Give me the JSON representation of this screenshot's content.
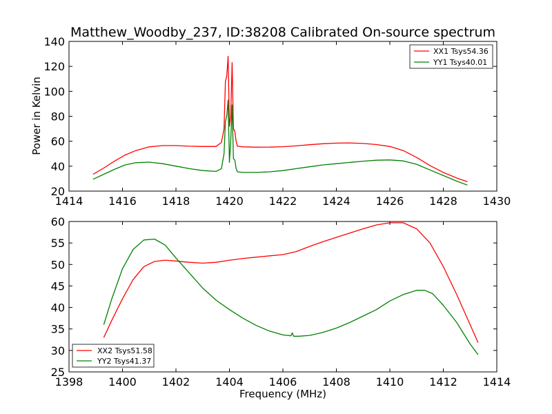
{
  "chart_data": [
    {
      "type": "line",
      "title": "Matthew_Woodby_237, ID:38208 Calibrated On-source spectrum",
      "xlabel": "",
      "ylabel": "Power in Kelvin",
      "xlim": [
        1414,
        1430
      ],
      "ylim": [
        20,
        140
      ],
      "xticks": [
        1414,
        1416,
        1418,
        1420,
        1422,
        1424,
        1426,
        1428,
        1430
      ],
      "yticks": [
        20,
        40,
        60,
        80,
        100,
        120,
        140
      ],
      "xtick_labels": [
        "1414",
        "1416",
        "1418",
        "1420",
        "1422",
        "1424",
        "1426",
        "1428",
        "1430"
      ],
      "ytick_labels": [
        "20",
        "40",
        "60",
        "80",
        "100",
        "120",
        "140"
      ],
      "legend_position": "top-right",
      "series": [
        {
          "name": "XX1 Tsys54.36",
          "color": "#ff0000",
          "x": [
            1414.9,
            1415.3,
            1415.7,
            1416.1,
            1416.5,
            1417.0,
            1417.5,
            1418.0,
            1418.5,
            1419.0,
            1419.5,
            1419.7,
            1419.8,
            1419.85,
            1419.9,
            1419.95,
            1420.0,
            1420.05,
            1420.1,
            1420.15,
            1420.2,
            1420.25,
            1420.3,
            1420.5,
            1421.0,
            1421.5,
            1422.0,
            1422.5,
            1423.0,
            1423.5,
            1424.0,
            1424.5,
            1425.0,
            1425.5,
            1426.0,
            1426.5,
            1427.0,
            1427.5,
            1428.0,
            1428.5,
            1428.9
          ],
          "y": [
            33.5,
            38.5,
            44,
            49,
            52.5,
            55.5,
            56.5,
            56.5,
            56.0,
            55.8,
            55.8,
            59,
            70,
            108,
            112,
            128,
            72,
            80,
            123,
            70,
            68,
            60,
            56,
            55.5,
            55.2,
            55.3,
            55.6,
            56.3,
            57.2,
            58.0,
            58.5,
            58.6,
            58.2,
            57.3,
            55.8,
            52.5,
            47,
            40.5,
            35,
            30.5,
            27.5
          ]
        },
        {
          "name": "YY1 Tsys40.01",
          "color": "#008000",
          "x": [
            1414.9,
            1415.3,
            1415.7,
            1416.1,
            1416.5,
            1417.0,
            1417.5,
            1418.0,
            1418.5,
            1419.0,
            1419.5,
            1419.7,
            1419.8,
            1419.85,
            1419.9,
            1419.95,
            1420.0,
            1420.05,
            1420.1,
            1420.15,
            1420.2,
            1420.25,
            1420.3,
            1420.5,
            1421.0,
            1421.5,
            1422.0,
            1422.5,
            1423.0,
            1423.5,
            1424.0,
            1424.5,
            1425.0,
            1425.5,
            1426.0,
            1426.5,
            1427.0,
            1427.5,
            1428.0,
            1428.5,
            1428.9
          ],
          "y": [
            29.5,
            33.5,
            37.5,
            41,
            42.8,
            43.2,
            42.0,
            40.0,
            38.0,
            36.5,
            35.8,
            38,
            50,
            76,
            80,
            93,
            43,
            60,
            89,
            46,
            45,
            38,
            35.5,
            35.0,
            35.0,
            35.5,
            36.5,
            38.0,
            39.5,
            41.0,
            42.0,
            43.0,
            44.0,
            44.8,
            45.0,
            44.2,
            41.5,
            37.0,
            32.5,
            28.0,
            24.8
          ]
        }
      ]
    },
    {
      "type": "line",
      "title": "",
      "xlabel": "Frequency (MHz)",
      "ylabel": "",
      "xlim": [
        1398,
        1414
      ],
      "ylim": [
        25,
        60
      ],
      "xticks": [
        1398,
        1400,
        1402,
        1404,
        1406,
        1408,
        1410,
        1412,
        1414
      ],
      "yticks": [
        25,
        30,
        35,
        40,
        45,
        50,
        55,
        60
      ],
      "xtick_labels": [
        "1398",
        "1400",
        "1402",
        "1404",
        "1406",
        "1408",
        "1410",
        "1412",
        "1414"
      ],
      "ytick_labels": [
        "25",
        "30",
        "35",
        "40",
        "45",
        "50",
        "55",
        "60"
      ],
      "legend_position": "bottom-left",
      "series": [
        {
          "name": "XX2 Tsys51.58",
          "color": "#ff0000",
          "x": [
            1399.3,
            1399.6,
            1400.0,
            1400.4,
            1400.8,
            1401.2,
            1401.6,
            1402.0,
            1402.5,
            1403.0,
            1403.5,
            1404.0,
            1404.5,
            1405.0,
            1405.5,
            1406.0,
            1406.5,
            1407.0,
            1407.5,
            1408.0,
            1408.5,
            1409.0,
            1409.5,
            1410.0,
            1410.5,
            1411.0,
            1411.5,
            1412.0,
            1412.5,
            1413.0,
            1413.3
          ],
          "y": [
            33.0,
            37.0,
            42.0,
            46.5,
            49.5,
            50.7,
            51.0,
            50.8,
            50.5,
            50.3,
            50.5,
            51.0,
            51.4,
            51.7,
            52.0,
            52.3,
            53.0,
            54.2,
            55.3,
            56.3,
            57.3,
            58.3,
            59.2,
            59.7,
            59.7,
            58.3,
            55.0,
            49.5,
            43.0,
            36.0,
            31.8
          ]
        },
        {
          "name": "YY2 Tsys41.37",
          "color": "#008000",
          "x": [
            1399.3,
            1399.6,
            1400.0,
            1400.4,
            1400.8,
            1401.2,
            1401.6,
            1402.0,
            1402.5,
            1403.0,
            1403.5,
            1404.0,
            1404.5,
            1405.0,
            1405.5,
            1406.0,
            1406.3,
            1406.35,
            1406.4,
            1406.6,
            1407.0,
            1407.5,
            1408.0,
            1408.5,
            1409.0,
            1409.5,
            1410.0,
            1410.5,
            1411.0,
            1411.3,
            1411.6,
            1412.0,
            1412.5,
            1413.0,
            1413.3
          ],
          "y": [
            36.0,
            42.0,
            49.0,
            53.5,
            55.7,
            55.9,
            54.5,
            51.5,
            48.0,
            44.5,
            41.7,
            39.5,
            37.5,
            35.8,
            34.5,
            33.6,
            33.4,
            34.1,
            33.3,
            33.3,
            33.5,
            34.2,
            35.2,
            36.5,
            38.0,
            39.5,
            41.5,
            43.0,
            44.0,
            44.0,
            43.2,
            40.5,
            36.5,
            31.5,
            29.0
          ]
        }
      ]
    }
  ]
}
